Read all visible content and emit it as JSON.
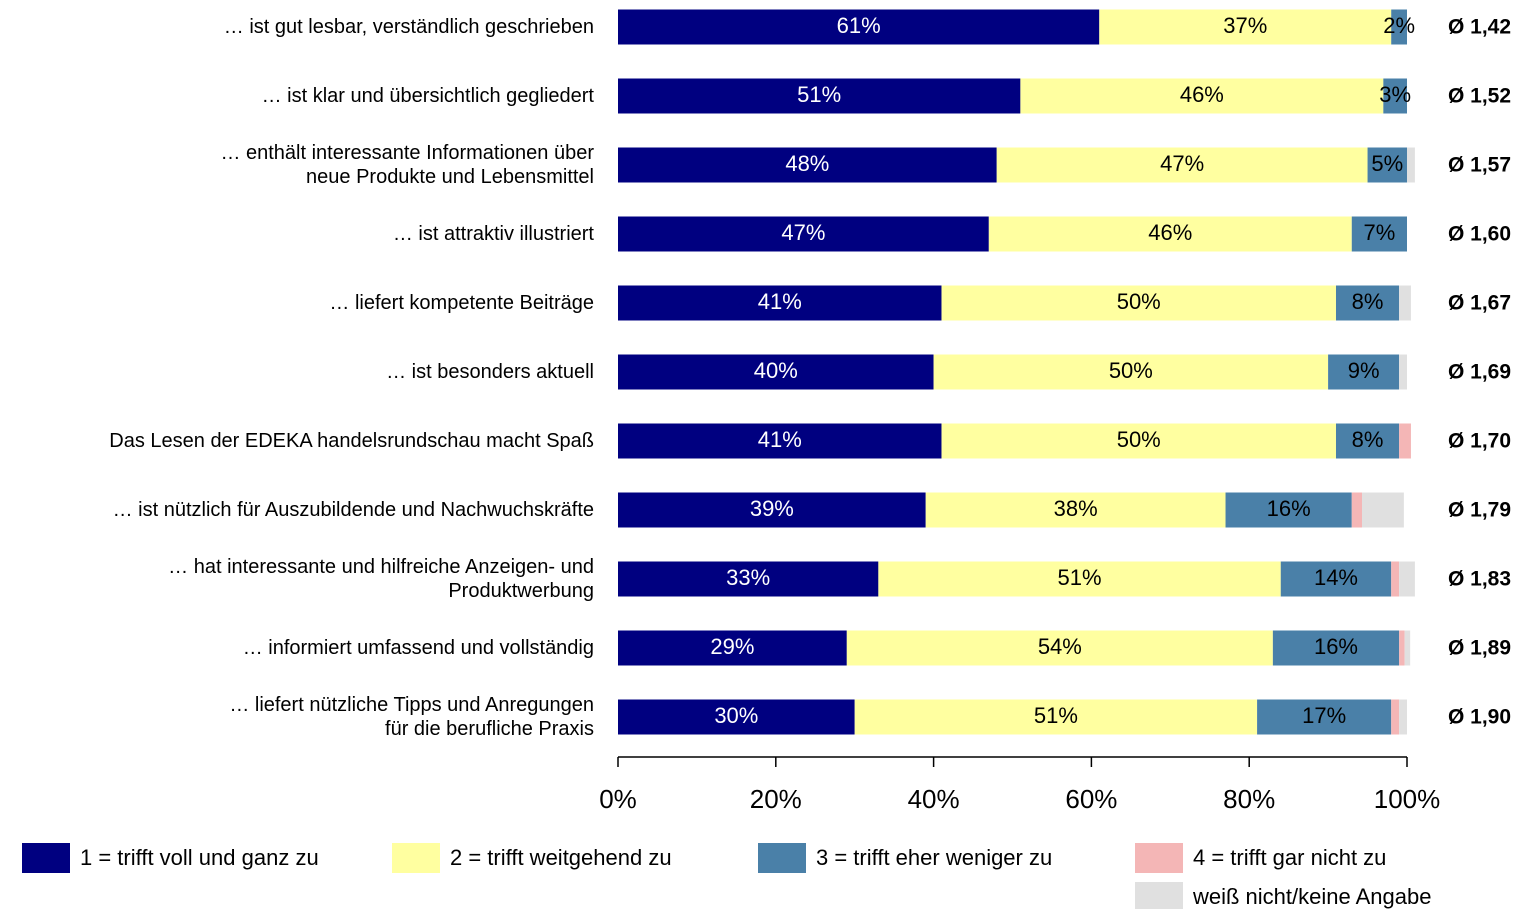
{
  "chart_data": {
    "type": "stacked-bar",
    "orientation": "horizontal",
    "categories": [
      "… ist gut lesbar, verständlich geschrieben",
      "… ist klar und übersichtlich gegliedert",
      "… enthält interessante Informationen über\nneue Produkte und Lebensmittel",
      "… ist attraktiv illustriert",
      "… liefert kompetente Beiträge",
      "… ist besonders aktuell",
      "Das Lesen der EDEKA handelsrundschau macht Spaß",
      "… ist nützlich für Auszubildende und Nachwuchskräfte",
      "… hat interessante und hilfreiche Anzeigen- und\nProduktwerbung",
      "… informiert umfassend und vollständig",
      "… liefert nützliche Tipps und Anregungen\nfür die berufliche Praxis"
    ],
    "series": [
      {
        "name": "1 = trifft voll und ganz zu",
        "color": "#000080",
        "values": [
          61,
          51,
          48,
          47,
          41,
          40,
          41,
          39,
          33,
          29,
          30
        ],
        "value_labels": [
          "61%",
          "51%",
          "48%",
          "47%",
          "41%",
          "40%",
          "41%",
          "39%",
          "33%",
          "29%",
          "30%"
        ]
      },
      {
        "name": "2 = trifft weitgehend zu",
        "color": "#ffffa0",
        "values": [
          37,
          46,
          47,
          46,
          50,
          50,
          50,
          38,
          51,
          54,
          51
        ],
        "value_labels": [
          "37%",
          "46%",
          "47%",
          "46%",
          "50%",
          "50%",
          "50%",
          "38%",
          "51%",
          "54%",
          "51%"
        ]
      },
      {
        "name": "3 = trifft eher weniger zu",
        "color": "#4a80a8",
        "values": [
          2,
          3,
          5,
          7,
          8,
          9,
          8,
          16,
          14,
          16,
          17
        ],
        "value_labels": [
          "2%",
          "3%",
          "5%",
          "7%",
          "8%",
          "9%",
          "8%",
          "16%",
          "14%",
          "16%",
          "17%"
        ]
      },
      {
        "name": "4 = trifft gar nicht zu",
        "color": "#f4b6b6",
        "values": [
          0,
          0,
          0,
          0,
          0,
          0,
          1.5,
          1.3,
          1,
          0.7,
          1
        ]
      },
      {
        "name": "weiß nicht/keine Angabe",
        "color": "#e0e0e0",
        "values": [
          0,
          0,
          1,
          0,
          1.5,
          1,
          0,
          5.3,
          2,
          0.7,
          1
        ]
      }
    ],
    "averages": [
      "Ø 1,42",
      "Ø 1,52",
      "Ø 1,57",
      "Ø 1,60",
      "Ø 1,67",
      "Ø 1,69",
      "Ø 1,70",
      "Ø 1,79",
      "Ø 1,83",
      "Ø 1,89",
      "Ø 1,90"
    ],
    "xlim": [
      0,
      100
    ],
    "xticks": [
      {
        "value": 0,
        "label": "0%"
      },
      {
        "value": 20,
        "label": "20%"
      },
      {
        "value": 40,
        "label": "40%"
      },
      {
        "value": 60,
        "label": "60%"
      },
      {
        "value": 80,
        "label": "80%"
      },
      {
        "value": 100,
        "label": "100%"
      }
    ]
  }
}
